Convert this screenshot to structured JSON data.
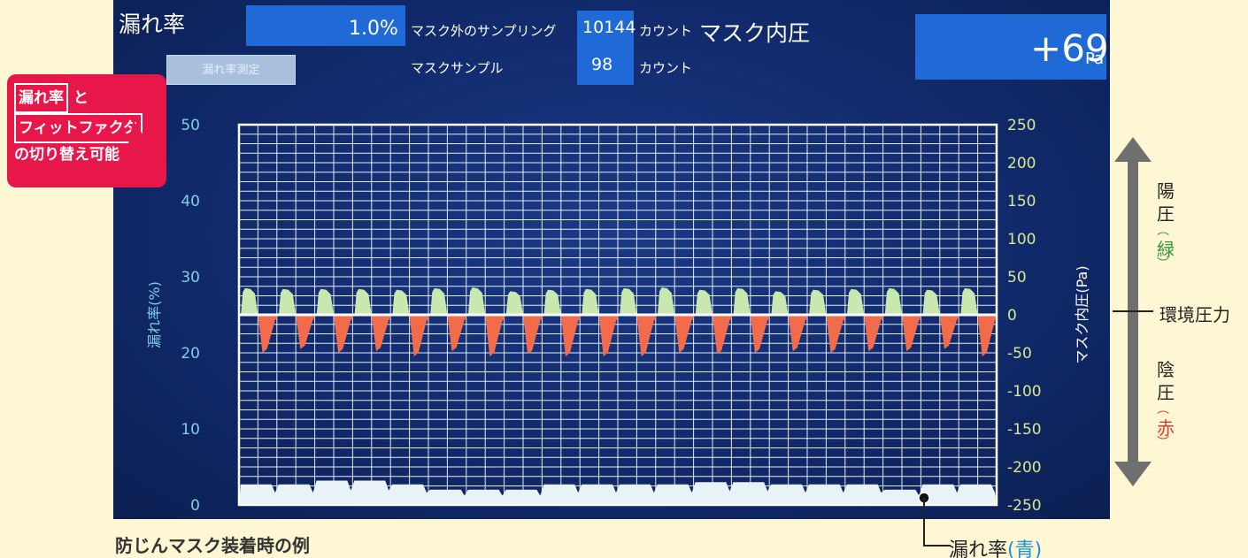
{
  "screen": {
    "leak_title": "漏れ率",
    "leak_value": "1.0%",
    "measure_button": "漏れ率測定",
    "outside_sampling_label": "マスク外のサンプリング",
    "outside_count": "10144",
    "outside_unit": "カウント",
    "mask_sample_label": "マスクサンプル",
    "mask_count": "98",
    "mask_unit": "カウント",
    "pressure_title": "マスク内圧",
    "pressure_value": "+69",
    "pressure_unit": "Pa"
  },
  "callout": {
    "term1": "漏れ率",
    "joiner": "と",
    "term2": "フィットファクタ",
    "tail": "の切り替え可能"
  },
  "side": {
    "positive_chars": [
      "陽",
      "圧"
    ],
    "positive_color_word": "緑",
    "ambient": "環境圧力",
    "negative_chars": [
      "陰",
      "圧"
    ],
    "negative_color_word": "赤"
  },
  "caption": "防じんマスク装着時の例",
  "leak_blue_label": {
    "text": "漏れ率",
    "color_word": "青"
  },
  "colors": {
    "positive": "#c9e8b0",
    "negative": "#f26b4a",
    "grid": "#ffffff",
    "axis_left": "#7fd0e6",
    "axis_right": "#d6e890",
    "red_text": "#e23a2b",
    "green_text": "#2e9a3a",
    "blue_text": "#1e8fe0"
  },
  "chart_data": {
    "type": "area",
    "left_axis": {
      "label": "漏れ率(%)",
      "ticks": [
        "50",
        "40",
        "30",
        "20",
        "10",
        "0"
      ],
      "ylim": [
        0,
        50
      ]
    },
    "right_axis": {
      "label": "マスク内圧(Pa)",
      "ticks": [
        "250",
        "200",
        "150",
        "100",
        "50",
        "0",
        "-50",
        "-100",
        "-150",
        "-200",
        "-250"
      ],
      "ylim": [
        -250,
        250
      ]
    },
    "grid": true,
    "cycles": 20,
    "pressure_peaks_pa": [
      35,
      34,
      34,
      34,
      33,
      35,
      36,
      31,
      33,
      34,
      35,
      36,
      33,
      35,
      31,
      33,
      34,
      35,
      33,
      35
    ],
    "pressure_troughs_pa": [
      -50,
      -45,
      -50,
      -48,
      -55,
      -48,
      -55,
      -52,
      -55,
      -55,
      -55,
      -50,
      -52,
      -50,
      -48,
      -50,
      -48,
      -48,
      -45,
      -55
    ],
    "leak_rate_pct": [
      2.7,
      2.7,
      3.2,
      3.2,
      2.7,
      2.0,
      2.0,
      2.0,
      2.7,
      2.7,
      2.7,
      2.7,
      3.0,
      3.0,
      2.7,
      2.7,
      2.7,
      2.0,
      2.7,
      2.7
    ]
  }
}
